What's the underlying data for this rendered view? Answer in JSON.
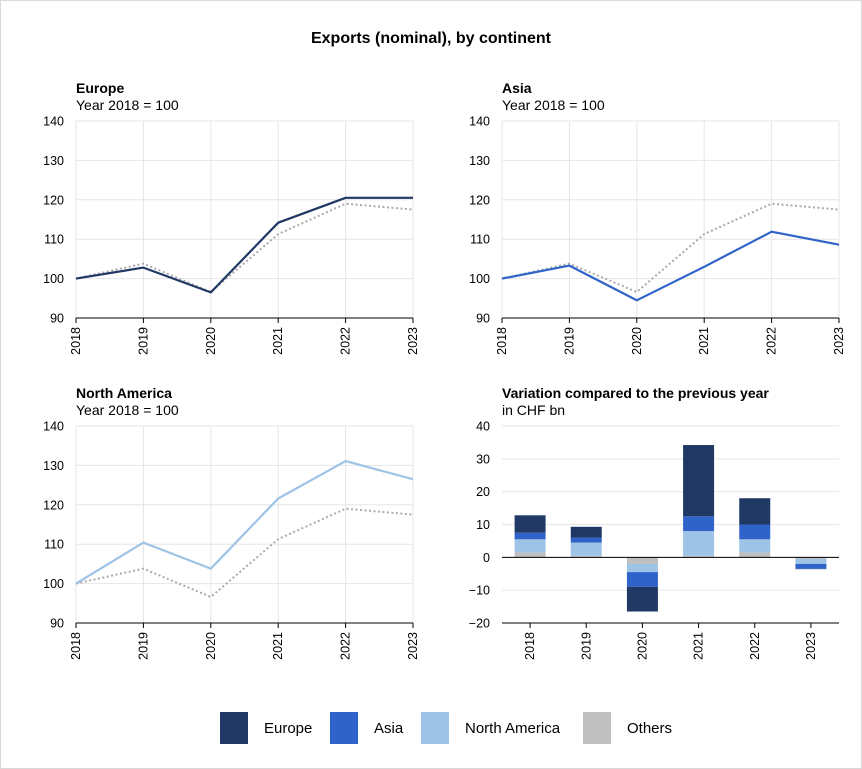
{
  "title": "Exports (nominal), by continent",
  "colors": {
    "europe": "#1f3864",
    "asia": "#2f63c9",
    "north_america": "#9dc3e6",
    "others": "#bfbfbf",
    "reference": "#aaaaaa",
    "grid": "#e6e6e6"
  },
  "legend": [
    {
      "label": "Europe",
      "color": "#1f3864"
    },
    {
      "label": "Asia",
      "color": "#2f63c9"
    },
    {
      "label": "North America",
      "color": "#9dc3e6"
    },
    {
      "label": "Others",
      "color": "#bfbfbf"
    }
  ],
  "chart_data": [
    {
      "type": "line",
      "title": "Europe",
      "subtitle": "Year 2018 = 100",
      "x": [
        "2018",
        "2019",
        "2020",
        "2021",
        "2022",
        "2023"
      ],
      "ylim": [
        90,
        140
      ],
      "yticks": [
        90,
        100,
        110,
        120,
        130,
        140
      ],
      "grid": true,
      "series": [
        {
          "name": "Europe",
          "values": [
            100,
            102.8,
            96.5,
            114.2,
            120.5,
            120.5
          ],
          "color": "#1f3864",
          "style": "solid"
        },
        {
          "values": [
            100,
            103.8,
            96.6,
            111.3,
            119.0,
            117.5
          ],
          "color": "#aaaaaa",
          "style": "dotted"
        }
      ]
    },
    {
      "type": "line",
      "title": "Asia",
      "subtitle": "Year 2018 = 100",
      "x": [
        "2018",
        "2019",
        "2020",
        "2021",
        "2022",
        "2023"
      ],
      "ylim": [
        90,
        140
      ],
      "yticks": [
        90,
        100,
        110,
        120,
        130,
        140
      ],
      "grid": true,
      "series": [
        {
          "name": "Asia",
          "values": [
            100,
            103.3,
            94.5,
            103.0,
            111.9,
            108.6
          ],
          "color": "#2f63c9",
          "style": "solid"
        },
        {
          "values": [
            100,
            103.8,
            96.6,
            111.3,
            119.0,
            117.5
          ],
          "color": "#aaaaaa",
          "style": "dotted"
        }
      ]
    },
    {
      "type": "line",
      "title": "North America",
      "subtitle": "Year 2018 = 100",
      "x": [
        "2018",
        "2019",
        "2020",
        "2021",
        "2022",
        "2023"
      ],
      "ylim": [
        90,
        140
      ],
      "yticks": [
        90,
        100,
        110,
        120,
        130,
        140
      ],
      "grid": true,
      "series": [
        {
          "name": "North America",
          "values": [
            100,
            110.4,
            103.8,
            121.6,
            131.1,
            126.5
          ],
          "color": "#9dc3e6",
          "style": "solid"
        },
        {
          "values": [
            100,
            103.8,
            96.6,
            111.3,
            119.0,
            117.5
          ],
          "color": "#aaaaaa",
          "style": "dotted"
        }
      ]
    },
    {
      "type": "bar",
      "stacked": true,
      "title": "Variation compared to the previous year",
      "subtitle": "in CHF bn",
      "categories": [
        "2018",
        "2019",
        "2020",
        "2021",
        "2022",
        "2023"
      ],
      "ylim": [
        -20,
        40
      ],
      "yticks": [
        -20,
        -10,
        0,
        10,
        20,
        30,
        40
      ],
      "grid": true,
      "series": [
        {
          "name": "Others",
          "color": "#bfbfbf",
          "values": [
            1.5,
            0.5,
            -2.0,
            0.5,
            1.5,
            -0.5
          ]
        },
        {
          "name": "North America",
          "color": "#9dc3e6",
          "values": [
            4.0,
            4.0,
            -2.5,
            7.5,
            4.0,
            -1.5
          ]
        },
        {
          "name": "Asia",
          "color": "#2f63c9",
          "values": [
            2.0,
            1.5,
            -4.5,
            4.5,
            4.5,
            -1.5
          ]
        },
        {
          "name": "Europe",
          "color": "#1f3864",
          "values": [
            5.3,
            3.3,
            -7.5,
            21.7,
            8.0,
            -0.1
          ]
        }
      ]
    }
  ]
}
